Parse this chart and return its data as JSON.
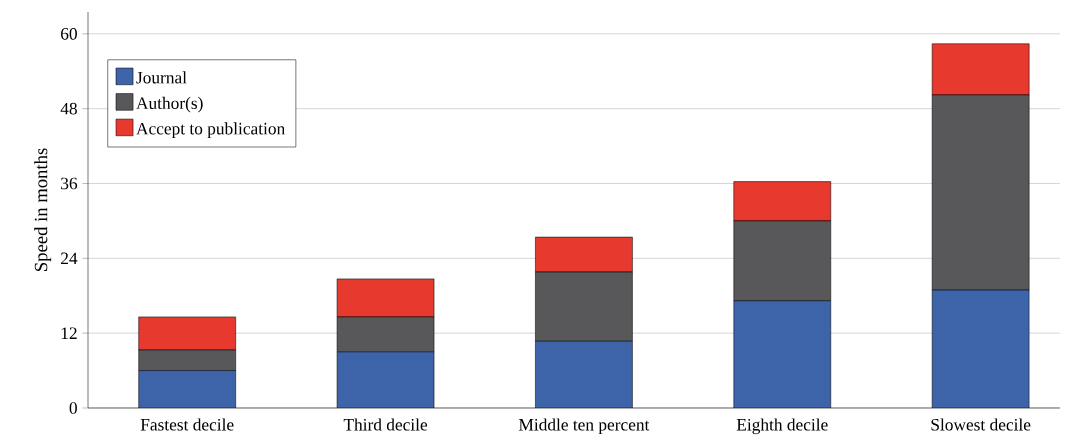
{
  "chart_data": {
    "type": "bar",
    "stacked": true,
    "ylabel": "Speed in months",
    "categories": [
      "Fastest decile",
      "Third decile",
      "Middle ten percent",
      "Eighth decile",
      "Slowest decile"
    ],
    "series": [
      {
        "name": "Journal",
        "color": "#3d64a8",
        "values": [
          6.0,
          9.0,
          10.7,
          17.2,
          18.9
        ]
      },
      {
        "name": "Author(s)",
        "color": "#58585a",
        "values": [
          3.3,
          5.6,
          11.1,
          12.8,
          31.3
        ]
      },
      {
        "name": "Accept to publication",
        "color": "#e8392f",
        "values": [
          5.3,
          6.1,
          5.6,
          6.3,
          8.2
        ]
      }
    ],
    "ylim": [
      0,
      63.5
    ],
    "yticks": [
      0,
      12,
      24,
      36,
      48,
      60
    ],
    "grid": "y",
    "legend": "top left"
  }
}
